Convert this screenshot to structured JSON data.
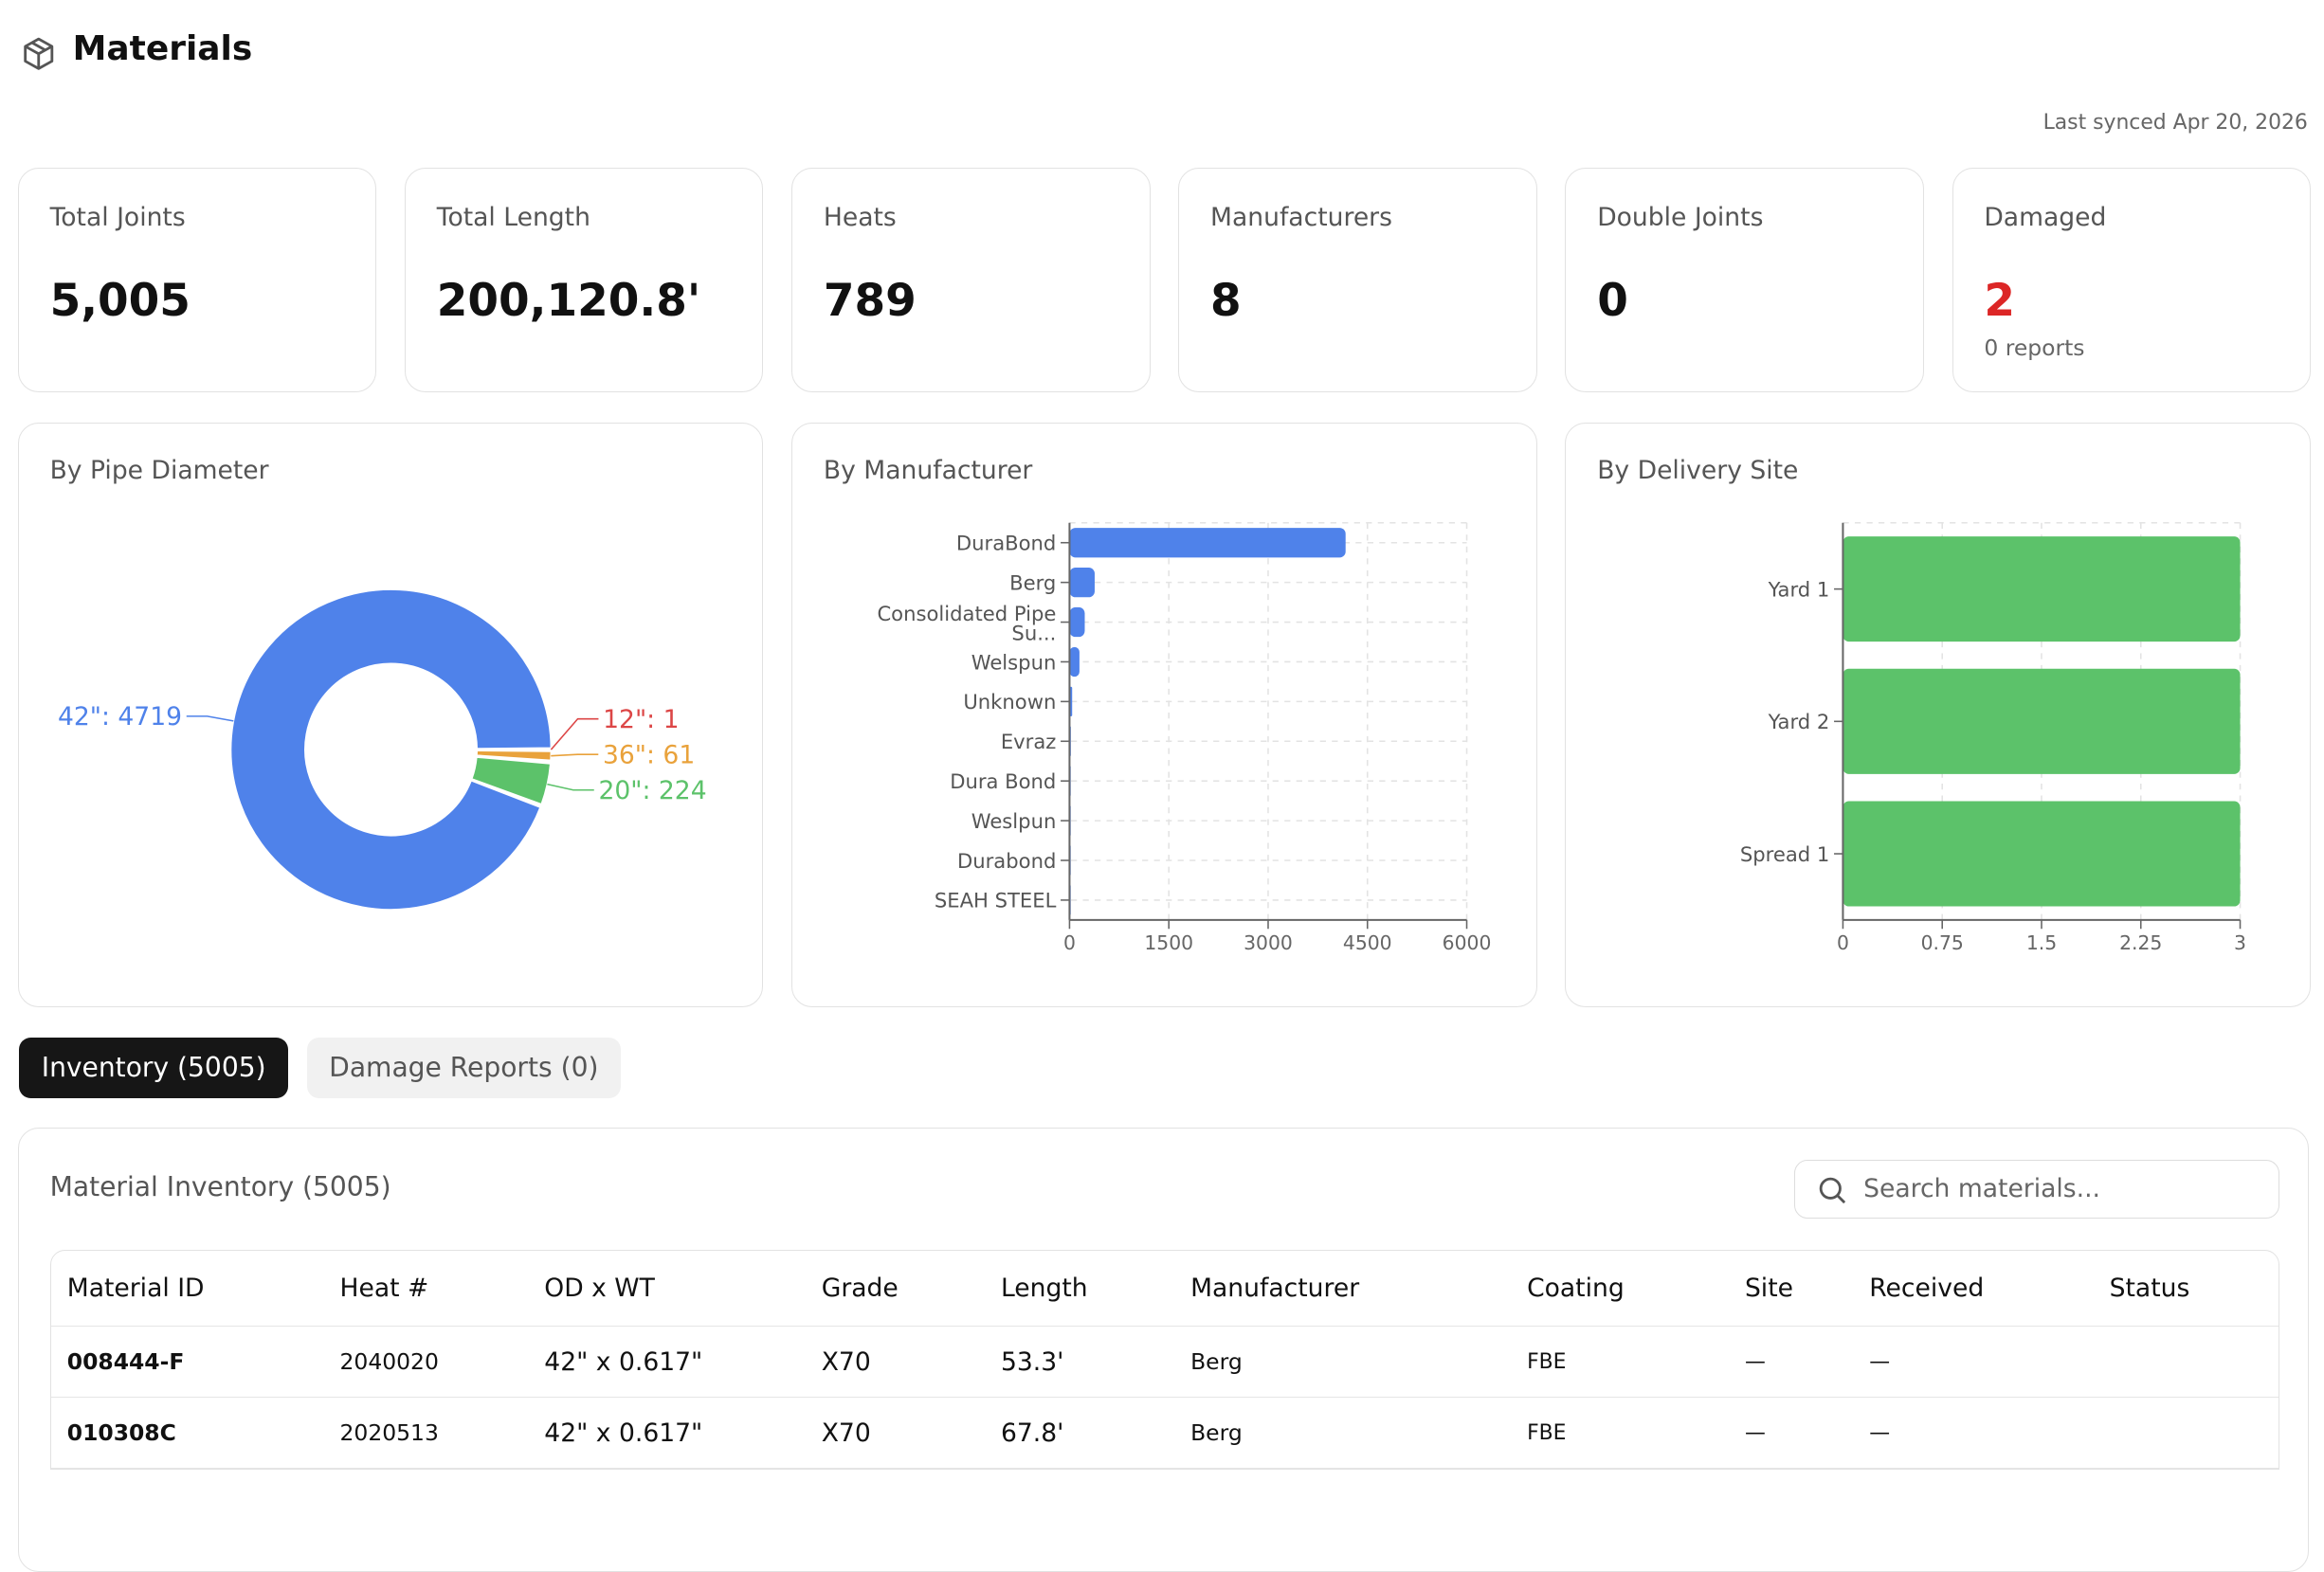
{
  "header": {
    "title": "Materials",
    "icon": "box-icon",
    "last_synced": "Last synced Apr 20, 2026"
  },
  "stats": [
    {
      "label": "Total Joints",
      "value": "5,005"
    },
    {
      "label": "Total Length",
      "value": "200,120.8'"
    },
    {
      "label": "Heats",
      "value": "789"
    },
    {
      "label": "Manufacturers",
      "value": "8"
    },
    {
      "label": "Double Joints",
      "value": "0"
    },
    {
      "label": "Damaged",
      "value": "2",
      "sub": "0 reports",
      "value_color": "#dc2626"
    }
  ],
  "chart_data": [
    {
      "type": "pie",
      "title": "By Pipe Diameter",
      "donut": true,
      "slices": [
        {
          "label": "42\"",
          "value": 4719,
          "color": "#4f82ea"
        },
        {
          "label": "20\"",
          "value": 224,
          "color": "#5cc26a"
        },
        {
          "label": "36\"",
          "value": 61,
          "color": "#e9a23b"
        },
        {
          "label": "12\"",
          "value": 1,
          "color": "#dc4646"
        }
      ]
    },
    {
      "type": "bar",
      "orientation": "horizontal",
      "title": "By Manufacturer",
      "color": "#4f82ea",
      "grid": true,
      "categories": [
        "DuraBond",
        "Berg",
        "Consolidated Pipe Su...",
        "Welspun",
        "Unknown",
        "Evraz",
        "Dura Bond",
        "Weslpun",
        "Durabond",
        "SEAH STEEL"
      ],
      "values": [
        4170,
        380,
        230,
        150,
        40,
        20,
        8,
        3,
        2,
        2
      ],
      "xlim": [
        0,
        6000
      ],
      "xticks": [
        "0",
        "1500",
        "3000",
        "4500",
        "6000"
      ]
    },
    {
      "type": "bar",
      "orientation": "horizontal",
      "title": "By Delivery Site",
      "color": "#5cc26a",
      "grid": true,
      "categories": [
        "Yard 1",
        "Yard 2",
        "Spread 1"
      ],
      "values": [
        3,
        3,
        3
      ],
      "xlim": [
        0,
        3
      ],
      "xticks": [
        "0",
        "0.75",
        "1.5",
        "2.25",
        "3"
      ]
    }
  ],
  "tabs": [
    {
      "label": "Inventory (5005)",
      "active": true
    },
    {
      "label": "Damage Reports (0)",
      "active": false
    }
  ],
  "inventory": {
    "title": "Material Inventory (5005)",
    "search_placeholder": "Search materials...",
    "columns": [
      "Material ID",
      "Heat #",
      "OD x WT",
      "Grade",
      "Length",
      "Manufacturer",
      "Coating",
      "Site",
      "Received",
      "Status"
    ],
    "rows": [
      [
        "008444-F",
        "2040020",
        "42\" x 0.617\"",
        "X70",
        "53.3'",
        "Berg",
        "FBE",
        "—",
        "—",
        ""
      ],
      [
        "010308C",
        "2020513",
        "42\" x 0.617\"",
        "X70",
        "67.8'",
        "Berg",
        "FBE",
        "—",
        "—",
        ""
      ]
    ]
  }
}
